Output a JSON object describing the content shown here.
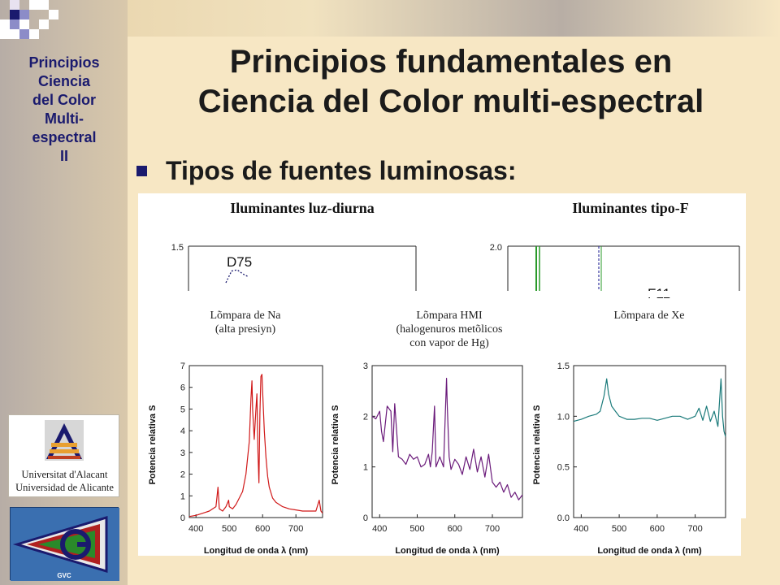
{
  "sidebar": {
    "title_lines": [
      "Principios",
      "Ciencia",
      "del Color",
      "Multi-",
      "espectral",
      "II"
    ],
    "logo_university": {
      "line1": "Universitat d'Alacant",
      "line2": "Universidad de Alicante"
    },
    "logo_group": {
      "letters": "GVC"
    }
  },
  "slide": {
    "title_lines": [
      "Principios fundamentales en",
      "Ciencia del Color multi-espectral"
    ],
    "bullet": "Tipos de fuentes luminosas:"
  },
  "colors": {
    "accent": "#1a1a6e",
    "na_curve": "#d01818",
    "hmi_curve": "#6a1a7a",
    "xe_curve": "#1a7a7a",
    "f_curve_green": "#2a9a2a",
    "f_curve_blue": "#3a3aa0"
  },
  "chart_data": [
    {
      "type": "line",
      "title": "Iluminantes luz-diurna",
      "partial": true,
      "yticks": [
        "1.5"
      ],
      "annotations": [
        "D75"
      ],
      "series": [
        {
          "name": "D75",
          "x": [
            450,
            460,
            470,
            480,
            490
          ],
          "y": [
            1.0,
            1.2,
            1.22,
            1.15,
            1.1
          ]
        }
      ]
    },
    {
      "type": "line",
      "title": "Iluminantes tipo-F",
      "partial": true,
      "yticks": [
        "2.0"
      ],
      "annotations": [
        "F11"
      ]
    },
    {
      "type": "line",
      "title": "Lõmpara de Na",
      "subtitle": "(alta presiyn)",
      "xlabel": "Longitud de onda λ (nm)",
      "ylabel": "Potencia relativa S",
      "xlim": [
        380,
        780
      ],
      "ylim": [
        0,
        7
      ],
      "xticks": [
        400,
        500,
        600,
        700
      ],
      "yticks": [
        0,
        1,
        2,
        3,
        4,
        5,
        6,
        7
      ],
      "series": [
        {
          "x": [
            380,
            400,
            420,
            440,
            450,
            460,
            466,
            470,
            480,
            490,
            498,
            500,
            510,
            520,
            540,
            550,
            560,
            565,
            568,
            570,
            575,
            580,
            583,
            586,
            589,
            592,
            595,
            598,
            601,
            605,
            610,
            615,
            620,
            630,
            640,
            660,
            680,
            700,
            720,
            740,
            760,
            770,
            775,
            780
          ],
          "y": [
            0.05,
            0.1,
            0.2,
            0.3,
            0.4,
            0.5,
            1.4,
            0.4,
            0.3,
            0.5,
            0.8,
            0.5,
            0.4,
            0.6,
            1.2,
            2.0,
            3.5,
            5.5,
            6.3,
            5.0,
            3.6,
            5.0,
            5.7,
            3.0,
            1.6,
            4.8,
            6.5,
            6.6,
            5.5,
            4.0,
            2.8,
            1.9,
            1.4,
            0.9,
            0.7,
            0.5,
            0.4,
            0.35,
            0.3,
            0.3,
            0.3,
            0.8,
            0.3,
            0.2
          ]
        }
      ]
    },
    {
      "type": "line",
      "title": "Lõmpara HMI",
      "subtitle": "(halogenuros metõlicos",
      "subtitle2": "con vapor de Hg)",
      "xlabel": "Longitud de onda λ (nm)",
      "ylabel": "Potencia relativa S",
      "xlim": [
        380,
        780
      ],
      "ylim": [
        0,
        3
      ],
      "xticks": [
        400,
        500,
        600,
        700
      ],
      "yticks": [
        0,
        1,
        2,
        3
      ],
      "series": [
        {
          "x": [
            380,
            390,
            400,
            405,
            410,
            420,
            430,
            435,
            440,
            450,
            460,
            470,
            480,
            490,
            500,
            510,
            520,
            530,
            535,
            540,
            546,
            550,
            560,
            570,
            575,
            578,
            580,
            585,
            590,
            600,
            610,
            620,
            630,
            640,
            650,
            660,
            670,
            680,
            690,
            700,
            710,
            720,
            730,
            740,
            750,
            760,
            770,
            780
          ],
          "y": [
            2.0,
            1.95,
            2.1,
            1.7,
            1.5,
            2.2,
            2.1,
            1.3,
            2.25,
            1.2,
            1.15,
            1.05,
            1.25,
            1.15,
            1.2,
            1.0,
            1.05,
            1.25,
            1.0,
            1.3,
            2.2,
            1.0,
            1.2,
            1.0,
            2.1,
            2.75,
            2.2,
            1.2,
            0.95,
            1.15,
            1.05,
            0.85,
            1.2,
            0.95,
            1.35,
            0.9,
            1.2,
            0.8,
            1.25,
            0.7,
            0.6,
            0.7,
            0.5,
            0.65,
            0.4,
            0.5,
            0.35,
            0.45
          ]
        }
      ]
    },
    {
      "type": "line",
      "title": "Lõmpara de Xe",
      "xlabel": "Longitud de onda λ (nm)",
      "ylabel": "Potencia relativa S",
      "xlim": [
        380,
        780
      ],
      "ylim": [
        0,
        1.5
      ],
      "xticks": [
        400,
        500,
        600,
        700
      ],
      "yticks": [
        "0.0",
        "0.5",
        "1.0",
        "1.5"
      ],
      "series": [
        {
          "x": [
            380,
            400,
            420,
            440,
            450,
            460,
            467,
            472,
            480,
            490,
            500,
            520,
            540,
            560,
            580,
            600,
            620,
            640,
            660,
            680,
            700,
            710,
            720,
            730,
            740,
            750,
            760,
            765,
            768,
            772,
            776,
            780
          ],
          "y": [
            0.95,
            0.97,
            1.0,
            1.02,
            1.05,
            1.2,
            1.37,
            1.22,
            1.1,
            1.05,
            1.0,
            0.97,
            0.97,
            0.98,
            0.98,
            0.96,
            0.98,
            1.0,
            1.0,
            0.97,
            1.0,
            1.08,
            0.96,
            1.1,
            0.95,
            1.05,
            0.9,
            1.2,
            1.37,
            1.0,
            0.85,
            0.8
          ]
        }
      ]
    }
  ]
}
